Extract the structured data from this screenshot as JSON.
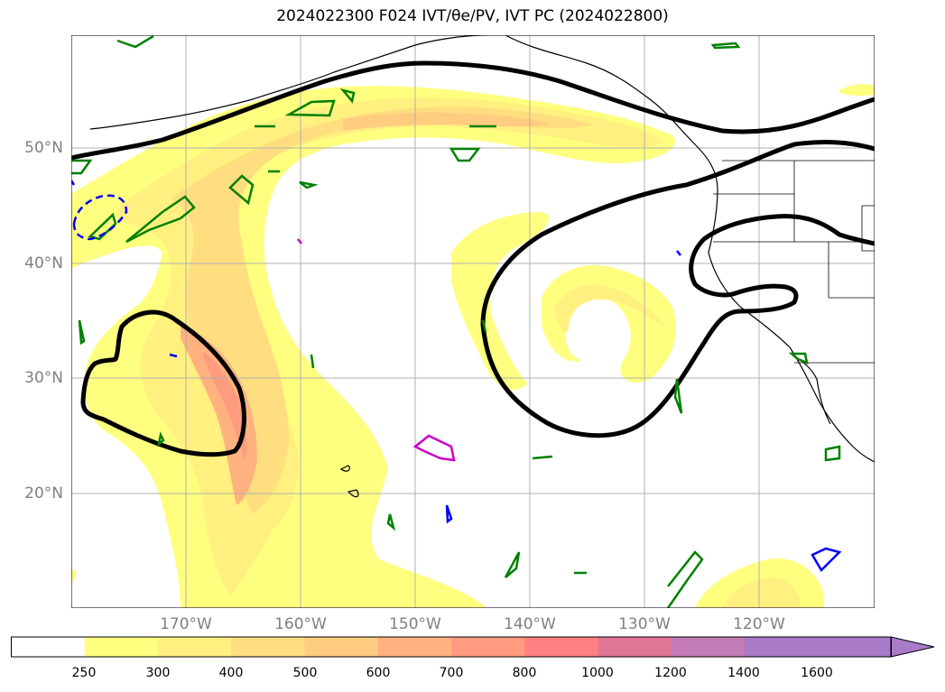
{
  "title": "2024022300 F024 IVT/θe/PV, IVT PC (2024022800)",
  "lat_labels": [
    "50°N",
    "40°N",
    "30°N",
    "20°N"
  ],
  "lon_labels": [
    "170°W",
    "160°W",
    "150°W",
    "140°W",
    "130°W",
    "120°W"
  ],
  "colorbar": {
    "ticks": [
      "250",
      "300",
      "400",
      "500",
      "600",
      "700",
      "800",
      "1000",
      "1200",
      "1400",
      "1600"
    ],
    "colors": [
      "#ffffff",
      "#ffff7f",
      "#fff080",
      "#ffde80",
      "#ffcc80",
      "#ffb27f",
      "#ff9b7f",
      "#ff8080",
      "#e17595",
      "#c37cb5",
      "#a87ac8"
    ],
    "extend": "max"
  },
  "colors": {
    "pc_contour": "#000000",
    "theta_e": "#008000",
    "pv_positive": "#0000ff",
    "pv_special": "#cc00cc",
    "grid": "#b0b0b0"
  }
}
